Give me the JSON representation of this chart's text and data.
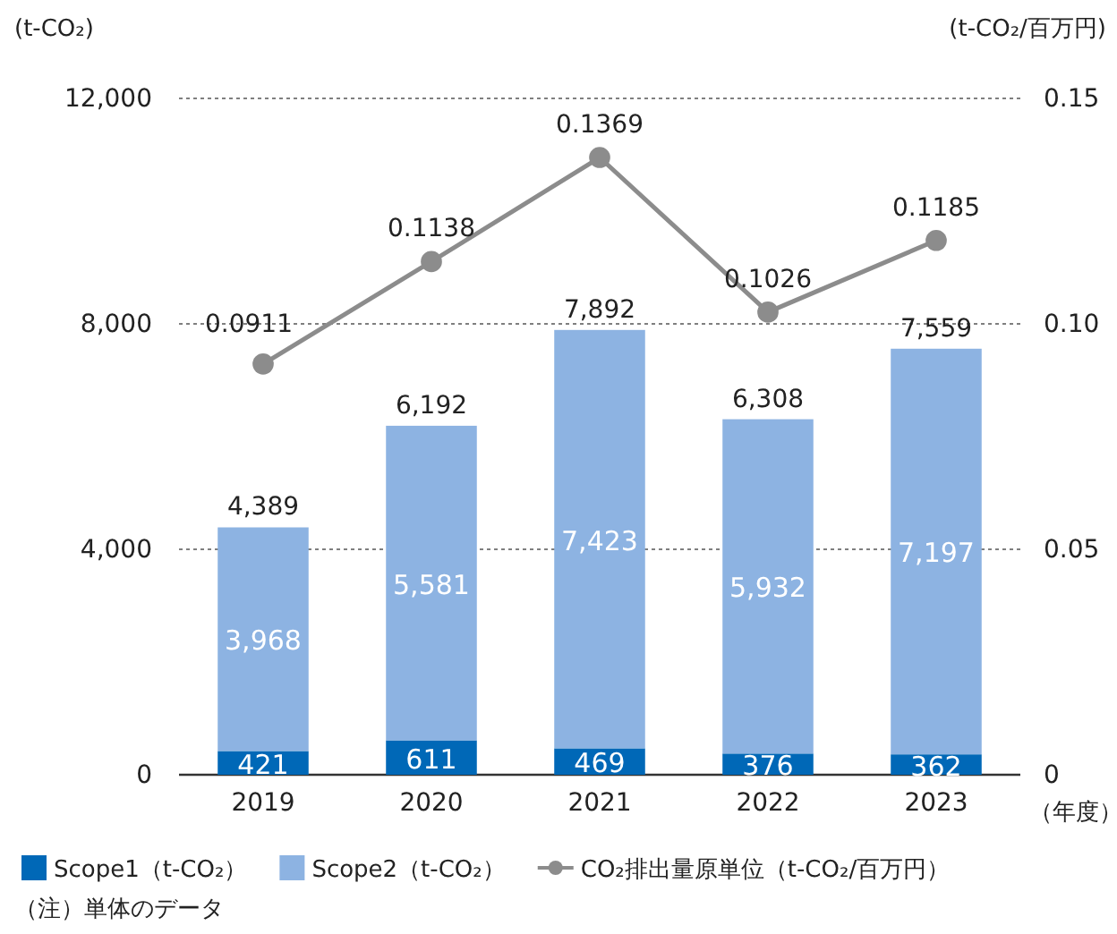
{
  "chart_data": {
    "type": "bar",
    "stacked": true,
    "categories": [
      "2019",
      "2020",
      "2021",
      "2022",
      "2023"
    ],
    "series": [
      {
        "name": "Scope1（t-CO₂）",
        "color": "#0068b7",
        "values": [
          421,
          611,
          469,
          376,
          362
        ],
        "value_labels": [
          "421",
          "611",
          "469",
          "376",
          "362"
        ]
      },
      {
        "name": "Scope2（t-CO₂）",
        "color": "#8db3e2",
        "values": [
          3968,
          5581,
          7423,
          5932,
          7197
        ],
        "value_labels": [
          "3,968",
          "5,581",
          "7,423",
          "5,932",
          "7,197"
        ]
      },
      {
        "name": "CO₂排出量原単位（t-CO₂/百万円）",
        "type": "line",
        "axis": "y2",
        "color": "#8c8c8c",
        "values": [
          0.0911,
          0.1138,
          0.1369,
          0.1026,
          0.1185
        ],
        "value_labels": [
          "0.0911",
          "0.1138",
          "0.1369",
          "0.1026",
          "0.1185"
        ]
      }
    ],
    "totals": [
      "4,389",
      "6,192",
      "7,892",
      "6,308",
      "7,559"
    ],
    "ylim": [
      0,
      12000
    ],
    "yticks": [
      {
        "value": 0,
        "label": "0"
      },
      {
        "value": 4000,
        "label": "4,000"
      },
      {
        "value": 8000,
        "label": "8,000"
      },
      {
        "value": 12000,
        "label": "12,000"
      }
    ],
    "y2lim": [
      0,
      0.15
    ],
    "y2ticks": [
      {
        "value": 0,
        "label": "0"
      },
      {
        "value": 0.05,
        "label": "0.05"
      },
      {
        "value": 0.1,
        "label": "0.10"
      },
      {
        "value": 0.15,
        "label": "0.15"
      }
    ],
    "ylabel": "(t-CO₂)",
    "y2label": "(t-CO₂/百万円)",
    "xlabel": "（年度）",
    "grid": "y",
    "legend": "bottom",
    "marker": "circle",
    "line_style": "solid",
    "annotations": [
      "（注）単体のデータ"
    ]
  }
}
